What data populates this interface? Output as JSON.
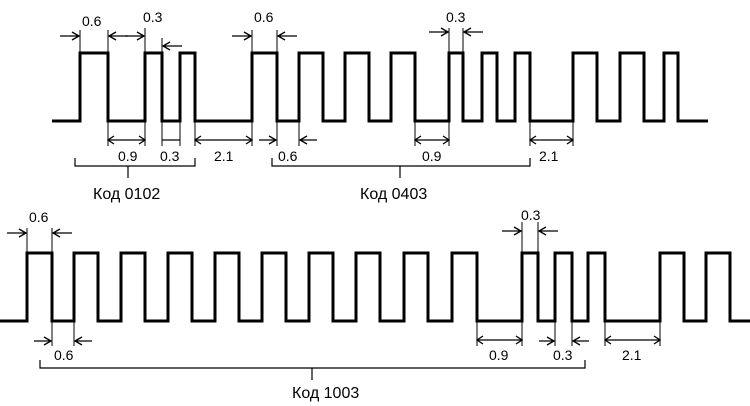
{
  "codes": {
    "code_0102": "Код 0102",
    "code_0403": "Код 0403",
    "code_1003": "Код 1003"
  },
  "row1": {
    "top_dims": [
      "0.6",
      "0.3",
      "0.6",
      "0.3"
    ],
    "bottom_dims": [
      "0.9",
      "0.3",
      "2.1",
      "0.6",
      "0.9",
      "2.1"
    ]
  },
  "row2": {
    "top_dims": [
      "0.6",
      "0.3"
    ],
    "bottom_dims": [
      "0.6",
      "0.9",
      "0.3",
      "2.1"
    ]
  }
}
